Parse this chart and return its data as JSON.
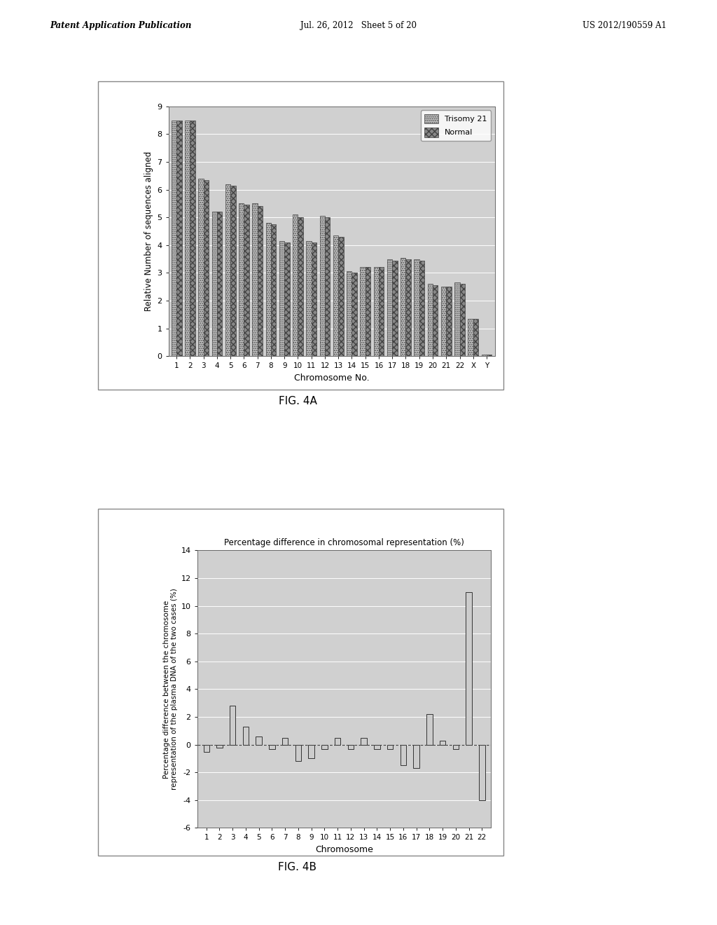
{
  "fig4a": {
    "xlabel": "Chromosome No.",
    "ylabel": "Relative Number of sequences aligned",
    "ylim": [
      0,
      9
    ],
    "yticks": [
      0,
      1,
      2,
      3,
      4,
      5,
      6,
      7,
      8,
      9
    ],
    "categories": [
      "1",
      "2",
      "3",
      "4",
      "5",
      "6",
      "7",
      "8",
      "9",
      "10",
      "11",
      "12",
      "13",
      "14",
      "15",
      "16",
      "17",
      "18",
      "19",
      "20",
      "21",
      "22",
      "X",
      "Y"
    ],
    "trisomy21": [
      8.5,
      8.5,
      6.4,
      5.2,
      6.2,
      5.5,
      5.5,
      4.8,
      4.15,
      5.1,
      4.15,
      5.05,
      4.35,
      3.05,
      3.2,
      3.2,
      3.5,
      3.55,
      3.5,
      2.6,
      2.5,
      2.65,
      1.35,
      0.05
    ],
    "normal": [
      8.5,
      8.5,
      6.35,
      5.2,
      6.15,
      5.45,
      5.4,
      4.75,
      4.1,
      5.0,
      4.1,
      5.0,
      4.3,
      3.0,
      3.2,
      3.2,
      3.45,
      3.5,
      3.45,
      2.55,
      2.5,
      2.6,
      1.35,
      0.05
    ],
    "color_trisomy": "#cccccc",
    "color_normal": "#888888",
    "legend_labels": [
      "Trisomy 21",
      "Normal"
    ],
    "bar_width": 0.38,
    "background_color": "#d0d0d0",
    "grid_color": "#ffffff"
  },
  "fig4b": {
    "title": "Percentage difference in chromosomal representation (%)",
    "xlabel": "Chromosome",
    "ylabel": "Percentage difference between the chromosome\nrepresentation of the plasma DNA of the two cases (%)",
    "ylim": [
      -6,
      14
    ],
    "yticks": [
      -6,
      -4,
      -2,
      0,
      2,
      4,
      6,
      8,
      10,
      12,
      14
    ],
    "categories": [
      "1",
      "2",
      "3",
      "4",
      "5",
      "6",
      "7",
      "8",
      "9",
      "10",
      "11",
      "12",
      "13",
      "14",
      "15",
      "16",
      "17",
      "18",
      "19",
      "20",
      "21",
      "22"
    ],
    "values": [
      -0.5,
      -0.2,
      2.8,
      1.3,
      0.6,
      -0.3,
      0.5,
      -1.2,
      -1.0,
      -0.3,
      0.5,
      -0.3,
      0.5,
      -0.3,
      -0.3,
      -1.5,
      -1.7,
      2.2,
      0.3,
      -0.3,
      11.0,
      -4.0
    ],
    "bar_color": "#cccccc",
    "bar_edge_color": "#333333",
    "background_color": "#d0d0d0",
    "grid_color": "#ffffff"
  },
  "header": {
    "left": "Patent Application Publication",
    "center": "Jul. 26, 2012   Sheet 5 of 20",
    "right": "US 2012/190559 A1"
  },
  "fig4a_label": "FIG. 4A",
  "fig4b_label": "FIG. 4B"
}
